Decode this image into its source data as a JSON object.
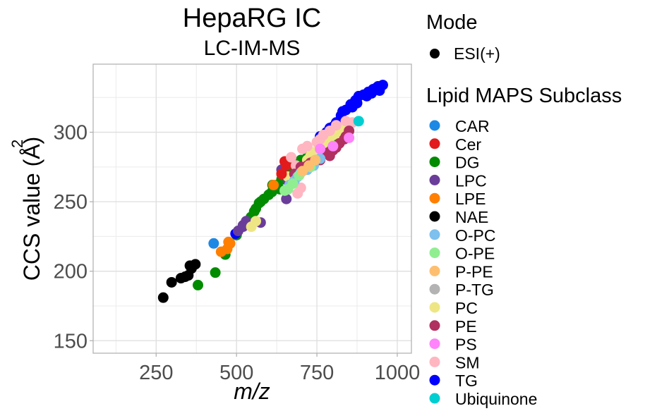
{
  "chart_data": {
    "type": "scatter",
    "title": "HepaRG IC",
    "subtitle": "LC-IM-MS",
    "xlabel": "m/z",
    "ylabel": "CCS value (Å²)",
    "ylabel_main": "CCS value (",
    "ylabel_unit": "Å",
    "ylabel_sup": "2",
    "ylabel_close": ")",
    "xlim": [
      54,
      1044
    ],
    "ylim": [
      141,
      349
    ],
    "x_ticks": [
      250,
      500,
      750,
      1000
    ],
    "x_tick_labels": [
      "250",
      "500",
      "750",
      "1000"
    ],
    "x_minor": [
      125,
      375,
      625,
      875
    ],
    "y_ticks": [
      150,
      200,
      250,
      300
    ],
    "y_tick_labels": [
      "150",
      "200",
      "250",
      "300"
    ],
    "y_minor": [
      175,
      225,
      275,
      325
    ],
    "grid": true,
    "legend_position": "right",
    "mode_legend": {
      "title": "Mode",
      "entries": [
        {
          "label": "ESI(+)",
          "color": "#000000"
        }
      ]
    },
    "subclass_legend": {
      "title": "Lipid MAPS Subclass",
      "entries": [
        {
          "label": "CAR",
          "color": "#1E88E5"
        },
        {
          "label": "Cer",
          "color": "#E31A1C"
        },
        {
          "label": "DG",
          "color": "#008B00"
        },
        {
          "label": "LPC",
          "color": "#6A3D9A"
        },
        {
          "label": "LPE",
          "color": "#FF7F00"
        },
        {
          "label": "NAE",
          "color": "#000000"
        },
        {
          "label": "O-PC",
          "color": "#7EC0EE"
        },
        {
          "label": "O-PE",
          "color": "#90EE90"
        },
        {
          "label": "P-PE",
          "color": "#FDBF6F"
        },
        {
          "label": "P-TG",
          "color": "#B3B3B3"
        },
        {
          "label": "PC",
          "color": "#EEE685"
        },
        {
          "label": "PE",
          "color": "#B03060"
        },
        {
          "label": "PS",
          "color": "#FF83FA"
        },
        {
          "label": "SM",
          "color": "#FFB6C1"
        },
        {
          "label": "TG",
          "color": "#0000FF"
        },
        {
          "label": "Ubiquinone",
          "color": "#00CED1"
        }
      ]
    },
    "series": [
      {
        "name": "NAE",
        "points": [
          [
            272,
            181
          ],
          [
            298,
            192
          ],
          [
            327,
            195
          ],
          [
            350,
            197
          ],
          [
            355,
            204
          ],
          [
            372,
            205
          ],
          [
            360,
            202
          ],
          [
            340,
            196
          ]
        ]
      },
      {
        "name": "CAR",
        "points": [
          [
            429,
            220
          ]
        ]
      },
      {
        "name": "DG",
        "points": [
          [
            380,
            190
          ],
          [
            434,
            199
          ],
          [
            465,
            212
          ],
          [
            500,
            226
          ],
          [
            530,
            234
          ],
          [
            545,
            239
          ],
          [
            555,
            243
          ],
          [
            570,
            249
          ],
          [
            585,
            252
          ],
          [
            600,
            255
          ],
          [
            612,
            262
          ],
          [
            625,
            262
          ],
          [
            640,
            266
          ],
          [
            650,
            268
          ],
          [
            660,
            272
          ],
          [
            675,
            275
          ],
          [
            690,
            270
          ],
          [
            700,
            280
          ],
          [
            720,
            282
          ],
          [
            760,
            285
          ],
          [
            780,
            288
          ],
          [
            800,
            296
          ],
          [
            820,
            302
          ],
          [
            560,
            245
          ],
          [
            575,
            250
          ],
          [
            610,
            257
          ],
          [
            635,
            259
          ],
          [
            660,
            266
          ],
          [
            690,
            278
          ]
        ]
      },
      {
        "name": "LPE",
        "points": [
          [
            452,
            214
          ],
          [
            471,
            216
          ],
          [
            475,
            221
          ],
          [
            480,
            220
          ],
          [
            615,
            262
          ],
          [
            640,
            270
          ]
        ]
      },
      {
        "name": "TG",
        "points": [
          [
            497,
            227
          ],
          [
            780,
            300
          ],
          [
            800,
            304
          ],
          [
            810,
            307
          ],
          [
            825,
            312
          ],
          [
            840,
            316
          ],
          [
            855,
            320
          ],
          [
            870,
            323
          ],
          [
            880,
            326
          ],
          [
            895,
            327
          ],
          [
            910,
            329
          ],
          [
            925,
            331
          ],
          [
            940,
            333
          ],
          [
            955,
            334
          ],
          [
            790,
            303
          ],
          [
            760,
            297
          ],
          [
            830,
            315
          ],
          [
            860,
            318
          ],
          [
            875,
            321
          ],
          [
            905,
            326
          ],
          [
            920,
            328
          ],
          [
            935,
            332
          ],
          [
            945,
            330
          ]
        ]
      },
      {
        "name": "LPC",
        "points": [
          [
            505,
            229
          ],
          [
            520,
            232
          ],
          [
            530,
            236
          ],
          [
            545,
            233
          ],
          [
            575,
            235
          ],
          [
            640,
            273
          ],
          [
            655,
            252
          ],
          [
            660,
            265
          ],
          [
            520,
            233
          ]
        ]
      },
      {
        "name": "PC",
        "points": [
          [
            546,
            232
          ],
          [
            560,
            236
          ],
          [
            660,
            268
          ],
          [
            690,
            275
          ],
          [
            720,
            280
          ],
          [
            740,
            285
          ],
          [
            760,
            290
          ],
          [
            780,
            294
          ],
          [
            800,
            298
          ],
          [
            820,
            300
          ],
          [
            770,
            292
          ],
          [
            790,
            296
          ],
          [
            810,
            299
          ],
          [
            830,
            303
          ],
          [
            750,
            287
          ],
          [
            730,
            283
          ]
        ]
      },
      {
        "name": "Cer",
        "points": [
          [
            650,
            279
          ],
          [
            655,
            276
          ],
          [
            640,
            270
          ]
        ]
      },
      {
        "name": "SM",
        "points": [
          [
            670,
            282
          ],
          [
            685,
            276
          ],
          [
            700,
            260
          ],
          [
            705,
            288
          ],
          [
            720,
            290
          ],
          [
            750,
            293
          ],
          [
            770,
            298
          ],
          [
            790,
            301
          ],
          [
            810,
            305
          ],
          [
            760,
            295
          ],
          [
            690,
            256
          ],
          [
            840,
            308
          ],
          [
            860,
            307
          ]
        ]
      },
      {
        "name": "PE",
        "points": [
          [
            700,
            275
          ],
          [
            720,
            276
          ],
          [
            740,
            279
          ],
          [
            760,
            280
          ],
          [
            780,
            285
          ],
          [
            800,
            287
          ],
          [
            820,
            292
          ],
          [
            835,
            295
          ],
          [
            680,
            270
          ],
          [
            730,
            278
          ],
          [
            790,
            283
          ],
          [
            810,
            289
          ],
          [
            840,
            297
          ],
          [
            850,
            301
          ]
        ]
      },
      {
        "name": "O-PC",
        "points": [
          [
            665,
            262
          ],
          [
            690,
            268
          ],
          [
            720,
            273
          ],
          [
            740,
            276
          ],
          [
            700,
            271
          ],
          [
            760,
            281
          ],
          [
            680,
            265
          ]
        ]
      },
      {
        "name": "O-PE",
        "points": [
          [
            660,
            259
          ],
          [
            675,
            263
          ],
          [
            650,
            258
          ],
          [
            695,
            269
          ],
          [
            730,
            275
          ]
        ]
      },
      {
        "name": "P-PE",
        "points": [
          [
            705,
            272
          ],
          [
            725,
            276
          ],
          [
            745,
            280
          ]
        ]
      },
      {
        "name": "PS",
        "points": [
          [
            800,
            290
          ],
          [
            850,
            296
          ],
          [
            760,
            288
          ]
        ]
      },
      {
        "name": "Ubiquinone",
        "points": [
          [
            880,
            308
          ]
        ]
      }
    ]
  }
}
